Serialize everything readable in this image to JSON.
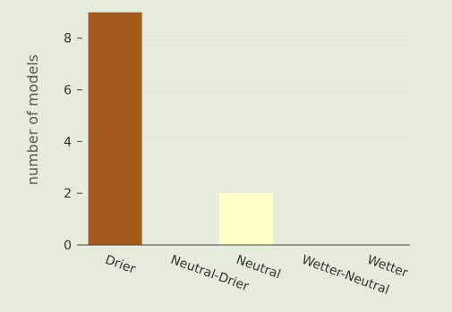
{
  "chart_data": {
    "type": "bar",
    "categories": [
      "Drier",
      "Neutral-Drier",
      "Neutral",
      "Wetter-Neutral",
      "Wetter"
    ],
    "values": [
      9,
      0,
      2,
      0,
      0
    ],
    "bar_colors": [
      "#a45a1c",
      "#d9b26f",
      "#ffffc8",
      "#8fc1d8",
      "#2f6fa8"
    ],
    "xlabel": "",
    "ylabel": "number of models",
    "ylim": [
      0,
      9.2
    ],
    "yticks": [
      0,
      2,
      4,
      6,
      8
    ],
    "grid": true,
    "background": "#e4ecdc",
    "grid_color": "#eef3e9",
    "axis_color": "#444444"
  }
}
